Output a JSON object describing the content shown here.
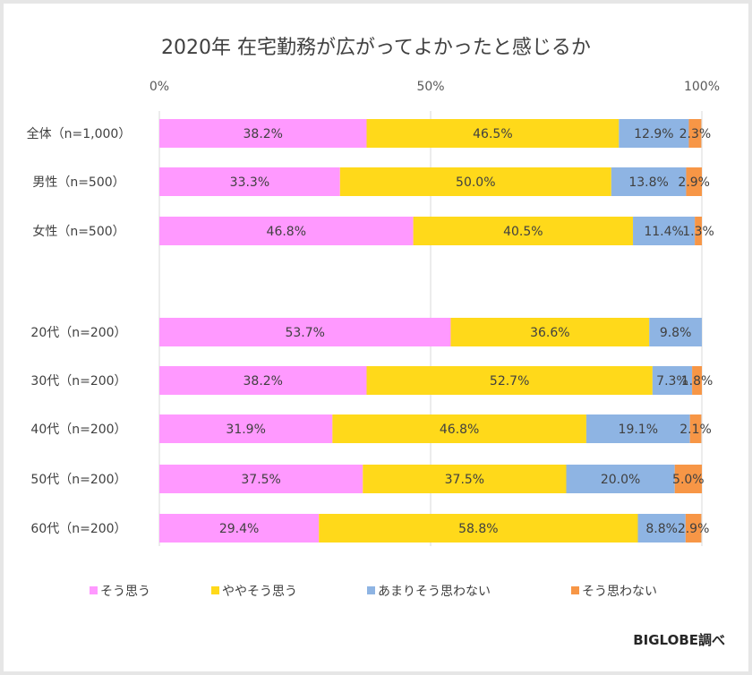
{
  "chart_data": {
    "type": "bar",
    "orientation": "horizontal",
    "stacked": "percent",
    "title": "2020年 在宅勤務が広がってよかったと感じるか",
    "xlabel": "",
    "ylabel": "",
    "xlim": [
      0,
      100
    ],
    "x_ticks": [
      "0%",
      "50%",
      "100%"
    ],
    "grid": true,
    "legend_position": "bottom",
    "categories": [
      "全体（n=1,000）",
      "男性（n=500）",
      "女性（n=500）",
      "20代（n=200）",
      "30代（n=200）",
      "40代（n=200）",
      "50代（n=200）",
      "60代（n=200）"
    ],
    "group_gap_after": 2,
    "series": [
      {
        "name": "そう思う",
        "color": "#FF99FF",
        "values": [
          38.2,
          33.3,
          46.8,
          53.7,
          38.2,
          31.9,
          37.5,
          29.4
        ]
      },
      {
        "name": "ややそう思う",
        "color": "#FFD91A",
        "values": [
          46.5,
          50.0,
          40.5,
          36.6,
          52.7,
          46.8,
          37.5,
          58.8
        ]
      },
      {
        "name": "あまりそう思わない",
        "color": "#8EB4E3",
        "values": [
          12.9,
          13.8,
          11.4,
          9.8,
          7.3,
          19.1,
          20.0,
          8.8
        ]
      },
      {
        "name": "そう思わない",
        "color": "#F79646",
        "values": [
          2.3,
          2.9,
          1.3,
          null,
          1.8,
          2.1,
          5.0,
          2.9
        ]
      }
    ],
    "annotation": "BIGLOBE調べ"
  }
}
